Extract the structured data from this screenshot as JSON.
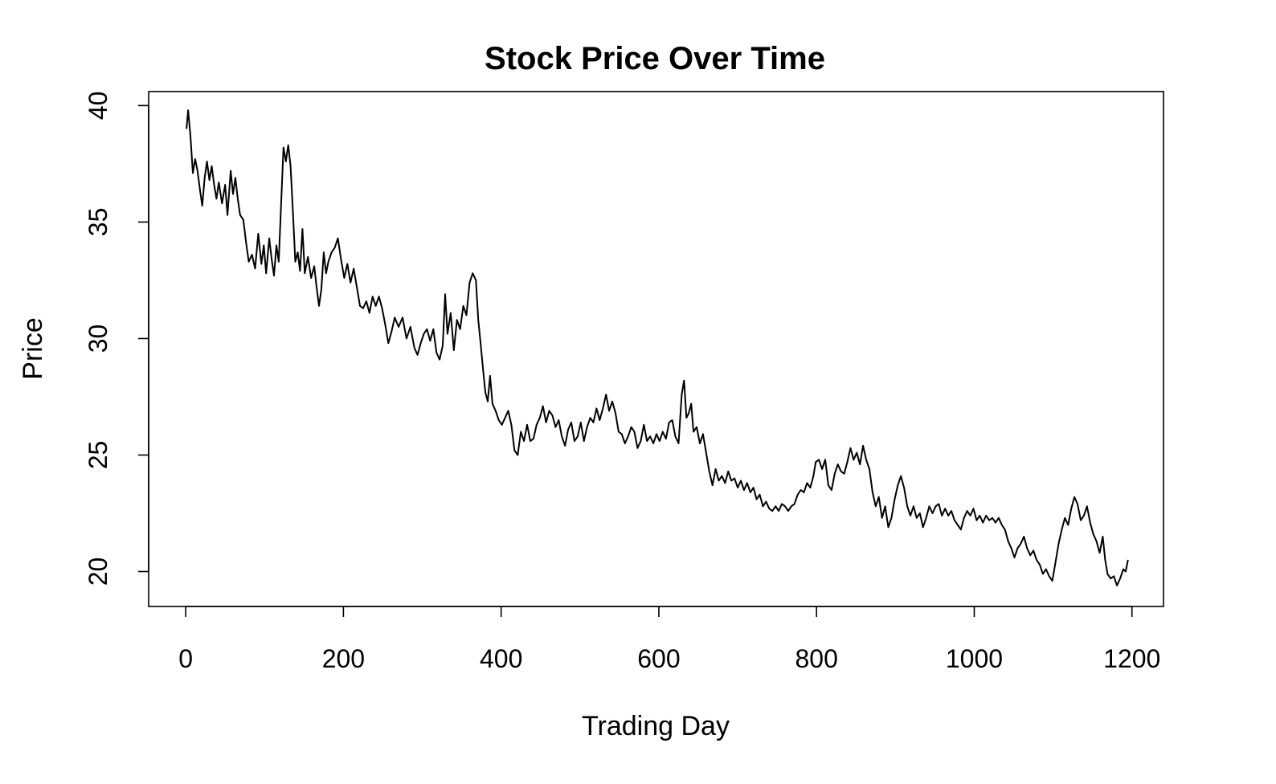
{
  "chart_data": {
    "type": "line",
    "title": "Stock Price Over Time",
    "xlabel": "Trading Day",
    "ylabel": "Price",
    "xlim": [
      -47,
      1240
    ],
    "ylim": [
      18.5,
      40.6
    ],
    "x_ticks": [
      0,
      200,
      400,
      600,
      800,
      1000,
      1200
    ],
    "y_ticks": [
      20,
      25,
      30,
      35,
      40
    ],
    "grid": false,
    "line_color": "#000000",
    "series": [
      {
        "points": [
          [
            1,
            39.0
          ],
          [
            3,
            39.8
          ],
          [
            6,
            38.7
          ],
          [
            9,
            37.1
          ],
          [
            12,
            37.7
          ],
          [
            15,
            37.2
          ],
          [
            18,
            36.4
          ],
          [
            21,
            35.7
          ],
          [
            24,
            36.9
          ],
          [
            27,
            37.6
          ],
          [
            30,
            36.8
          ],
          [
            33,
            37.4
          ],
          [
            36,
            36.6
          ],
          [
            39,
            36.0
          ],
          [
            42,
            36.7
          ],
          [
            46,
            35.8
          ],
          [
            50,
            36.6
          ],
          [
            53,
            35.3
          ],
          [
            57,
            37.2
          ],
          [
            60,
            36.2
          ],
          [
            63,
            36.9
          ],
          [
            66,
            36.0
          ],
          [
            69,
            35.3
          ],
          [
            73,
            35.1
          ],
          [
            77,
            34.0
          ],
          [
            80,
            33.3
          ],
          [
            84,
            33.6
          ],
          [
            88,
            33.0
          ],
          [
            92,
            34.5
          ],
          [
            96,
            33.2
          ],
          [
            99,
            34.0
          ],
          [
            102,
            32.8
          ],
          [
            106,
            34.3
          ],
          [
            109,
            33.4
          ],
          [
            112,
            32.7
          ],
          [
            115,
            34.0
          ],
          [
            118,
            33.3
          ],
          [
            121,
            35.8
          ],
          [
            124,
            38.2
          ],
          [
            127,
            37.6
          ],
          [
            130,
            38.3
          ],
          [
            133,
            37.4
          ],
          [
            136,
            35.4
          ],
          [
            139,
            33.3
          ],
          [
            142,
            33.7
          ],
          [
            145,
            32.9
          ],
          [
            148,
            34.7
          ],
          [
            151,
            32.8
          ],
          [
            155,
            33.5
          ],
          [
            159,
            32.6
          ],
          [
            163,
            33.1
          ],
          [
            166,
            32.2
          ],
          [
            169,
            31.4
          ],
          [
            172,
            32.1
          ],
          [
            175,
            33.7
          ],
          [
            178,
            32.8
          ],
          [
            181,
            33.3
          ],
          [
            185,
            33.7
          ],
          [
            189,
            33.9
          ],
          [
            193,
            34.3
          ],
          [
            197,
            33.4
          ],
          [
            201,
            32.6
          ],
          [
            205,
            33.2
          ],
          [
            209,
            32.4
          ],
          [
            213,
            33.0
          ],
          [
            217,
            32.2
          ],
          [
            221,
            31.4
          ],
          [
            225,
            31.3
          ],
          [
            229,
            31.6
          ],
          [
            233,
            31.1
          ],
          [
            237,
            31.8
          ],
          [
            241,
            31.4
          ],
          [
            245,
            31.8
          ],
          [
            249,
            31.3
          ],
          [
            253,
            30.6
          ],
          [
            257,
            29.8
          ],
          [
            261,
            30.3
          ],
          [
            265,
            30.9
          ],
          [
            270,
            30.5
          ],
          [
            275,
            30.9
          ],
          [
            280,
            30.0
          ],
          [
            285,
            30.5
          ],
          [
            290,
            29.6
          ],
          [
            294,
            29.3
          ],
          [
            298,
            29.8
          ],
          [
            302,
            30.2
          ],
          [
            306,
            30.4
          ],
          [
            310,
            29.9
          ],
          [
            314,
            30.4
          ],
          [
            318,
            29.4
          ],
          [
            322,
            29.1
          ],
          [
            326,
            29.7
          ],
          [
            329,
            31.9
          ],
          [
            332,
            30.2
          ],
          [
            336,
            31.1
          ],
          [
            340,
            29.5
          ],
          [
            344,
            30.8
          ],
          [
            348,
            30.4
          ],
          [
            352,
            31.4
          ],
          [
            356,
            31.0
          ],
          [
            360,
            32.4
          ],
          [
            364,
            32.8
          ],
          [
            368,
            32.5
          ],
          [
            371,
            30.8
          ],
          [
            374,
            29.8
          ],
          [
            377,
            28.7
          ],
          [
            380,
            27.7
          ],
          [
            383,
            27.3
          ],
          [
            386,
            28.4
          ],
          [
            389,
            27.2
          ],
          [
            393,
            26.9
          ],
          [
            397,
            26.5
          ],
          [
            401,
            26.3
          ],
          [
            405,
            26.6
          ],
          [
            409,
            26.9
          ],
          [
            413,
            26.3
          ],
          [
            417,
            25.2
          ],
          [
            421,
            25.0
          ],
          [
            425,
            26.0
          ],
          [
            429,
            25.6
          ],
          [
            433,
            26.3
          ],
          [
            437,
            25.6
          ],
          [
            441,
            25.7
          ],
          [
            445,
            26.3
          ],
          [
            449,
            26.6
          ],
          [
            453,
            27.1
          ],
          [
            457,
            26.4
          ],
          [
            461,
            26.9
          ],
          [
            465,
            26.7
          ],
          [
            469,
            26.2
          ],
          [
            473,
            26.5
          ],
          [
            477,
            25.8
          ],
          [
            481,
            25.4
          ],
          [
            485,
            26.1
          ],
          [
            489,
            26.4
          ],
          [
            493,
            25.6
          ],
          [
            497,
            25.8
          ],
          [
            501,
            26.4
          ],
          [
            505,
            25.6
          ],
          [
            509,
            26.2
          ],
          [
            513,
            26.6
          ],
          [
            517,
            26.4
          ],
          [
            521,
            27.0
          ],
          [
            525,
            26.5
          ],
          [
            529,
            27.0
          ],
          [
            533,
            27.6
          ],
          [
            537,
            26.9
          ],
          [
            541,
            27.3
          ],
          [
            545,
            26.8
          ],
          [
            549,
            26.0
          ],
          [
            553,
            25.9
          ],
          [
            557,
            25.5
          ],
          [
            561,
            25.8
          ],
          [
            565,
            26.2
          ],
          [
            569,
            26.0
          ],
          [
            573,
            25.3
          ],
          [
            577,
            25.6
          ],
          [
            581,
            26.3
          ],
          [
            585,
            25.6
          ],
          [
            589,
            25.8
          ],
          [
            593,
            25.5
          ],
          [
            597,
            25.9
          ],
          [
            601,
            25.6
          ],
          [
            605,
            26.0
          ],
          [
            609,
            25.7
          ],
          [
            613,
            26.4
          ],
          [
            617,
            26.5
          ],
          [
            621,
            25.8
          ],
          [
            625,
            25.5
          ],
          [
            629,
            27.6
          ],
          [
            632,
            28.2
          ],
          [
            635,
            26.6
          ],
          [
            638,
            26.8
          ],
          [
            641,
            27.2
          ],
          [
            644,
            26.0
          ],
          [
            648,
            26.2
          ],
          [
            652,
            25.5
          ],
          [
            656,
            25.9
          ],
          [
            660,
            25.1
          ],
          [
            664,
            24.3
          ],
          [
            668,
            23.7
          ],
          [
            672,
            24.4
          ],
          [
            676,
            23.9
          ],
          [
            680,
            24.1
          ],
          [
            684,
            23.8
          ],
          [
            688,
            24.3
          ],
          [
            692,
            23.9
          ],
          [
            696,
            24.0
          ],
          [
            700,
            23.6
          ],
          [
            704,
            23.9
          ],
          [
            708,
            23.5
          ],
          [
            712,
            23.8
          ],
          [
            716,
            23.4
          ],
          [
            720,
            23.6
          ],
          [
            724,
            23.1
          ],
          [
            728,
            23.3
          ],
          [
            732,
            22.8
          ],
          [
            736,
            23.0
          ],
          [
            740,
            22.7
          ],
          [
            744,
            22.6
          ],
          [
            748,
            22.8
          ],
          [
            752,
            22.6
          ],
          [
            756,
            22.9
          ],
          [
            760,
            22.8
          ],
          [
            764,
            22.6
          ],
          [
            768,
            22.8
          ],
          [
            772,
            22.9
          ],
          [
            776,
            23.3
          ],
          [
            780,
            23.5
          ],
          [
            784,
            23.4
          ],
          [
            788,
            23.8
          ],
          [
            792,
            23.6
          ],
          [
            796,
            24.1
          ],
          [
            799,
            24.7
          ],
          [
            803,
            24.8
          ],
          [
            807,
            24.4
          ],
          [
            811,
            24.8
          ],
          [
            815,
            23.7
          ],
          [
            819,
            23.5
          ],
          [
            823,
            24.2
          ],
          [
            827,
            24.6
          ],
          [
            831,
            24.3
          ],
          [
            835,
            24.2
          ],
          [
            839,
            24.7
          ],
          [
            843,
            25.3
          ],
          [
            847,
            24.8
          ],
          [
            851,
            25.1
          ],
          [
            855,
            24.6
          ],
          [
            859,
            25.4
          ],
          [
            863,
            24.8
          ],
          [
            867,
            24.4
          ],
          [
            871,
            23.4
          ],
          [
            875,
            22.8
          ],
          [
            879,
            23.2
          ],
          [
            883,
            22.3
          ],
          [
            887,
            22.8
          ],
          [
            891,
            21.9
          ],
          [
            895,
            22.3
          ],
          [
            899,
            23.1
          ],
          [
            903,
            23.7
          ],
          [
            907,
            24.1
          ],
          [
            911,
            23.6
          ],
          [
            915,
            22.8
          ],
          [
            919,
            22.4
          ],
          [
            923,
            22.8
          ],
          [
            927,
            22.3
          ],
          [
            931,
            22.5
          ],
          [
            935,
            21.9
          ],
          [
            939,
            22.3
          ],
          [
            943,
            22.8
          ],
          [
            947,
            22.5
          ],
          [
            951,
            22.8
          ],
          [
            955,
            22.9
          ],
          [
            959,
            22.4
          ],
          [
            963,
            22.7
          ],
          [
            967,
            22.4
          ],
          [
            971,
            22.6
          ],
          [
            975,
            22.2
          ],
          [
            979,
            22.0
          ],
          [
            983,
            21.8
          ],
          [
            987,
            22.3
          ],
          [
            991,
            22.6
          ],
          [
            995,
            22.4
          ],
          [
            999,
            22.7
          ],
          [
            1003,
            22.2
          ],
          [
            1007,
            22.4
          ],
          [
            1011,
            22.1
          ],
          [
            1015,
            22.4
          ],
          [
            1019,
            22.2
          ],
          [
            1023,
            22.3
          ],
          [
            1027,
            22.1
          ],
          [
            1031,
            22.3
          ],
          [
            1035,
            22.0
          ],
          [
            1039,
            21.8
          ],
          [
            1043,
            21.3
          ],
          [
            1047,
            21.0
          ],
          [
            1051,
            20.6
          ],
          [
            1055,
            21.0
          ],
          [
            1059,
            21.2
          ],
          [
            1063,
            21.5
          ],
          [
            1067,
            21.0
          ],
          [
            1071,
            20.7
          ],
          [
            1075,
            20.9
          ],
          [
            1079,
            20.5
          ],
          [
            1083,
            20.3
          ],
          [
            1087,
            19.9
          ],
          [
            1091,
            20.1
          ],
          [
            1095,
            19.8
          ],
          [
            1099,
            19.6
          ],
          [
            1103,
            20.4
          ],
          [
            1107,
            21.2
          ],
          [
            1111,
            21.8
          ],
          [
            1115,
            22.3
          ],
          [
            1119,
            22.0
          ],
          [
            1123,
            22.7
          ],
          [
            1127,
            23.2
          ],
          [
            1131,
            22.9
          ],
          [
            1135,
            22.2
          ],
          [
            1139,
            22.4
          ],
          [
            1143,
            22.8
          ],
          [
            1147,
            22.1
          ],
          [
            1151,
            21.6
          ],
          [
            1155,
            21.3
          ],
          [
            1159,
            20.8
          ],
          [
            1163,
            21.5
          ],
          [
            1166,
            20.5
          ],
          [
            1169,
            19.9
          ],
          [
            1173,
            19.7
          ],
          [
            1177,
            19.8
          ],
          [
            1181,
            19.4
          ],
          [
            1185,
            19.7
          ],
          [
            1189,
            20.1
          ],
          [
            1192,
            20.0
          ],
          [
            1195,
            20.5
          ]
        ]
      }
    ]
  }
}
